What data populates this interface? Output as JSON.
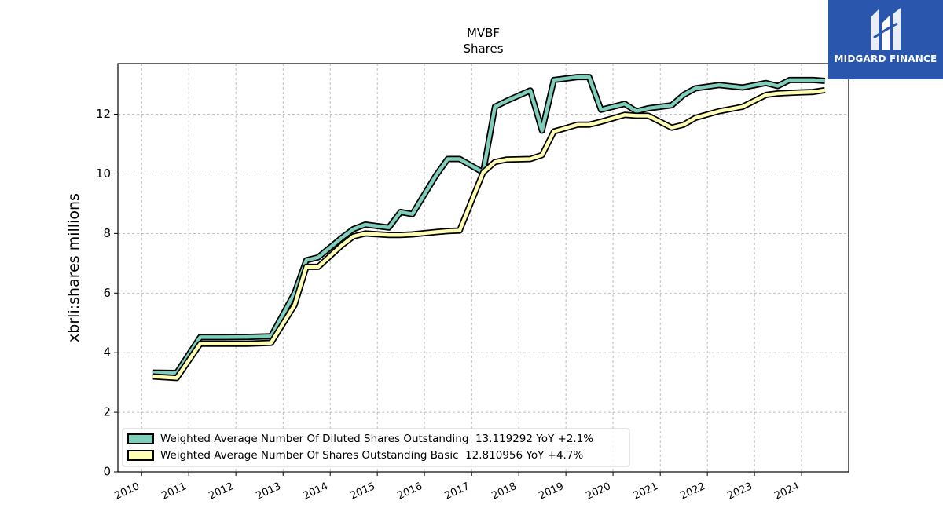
{
  "chart_data": {
    "type": "line",
    "title": "MVBF",
    "subtitle": "Shares",
    "ylabel": "xbrli:shares millions",
    "xlabel": "",
    "ylim": [
      0,
      13.7
    ],
    "xlim": [
      "2009-07-01",
      "2024-12-31"
    ],
    "yticks": [
      0,
      2,
      4,
      6,
      8,
      10,
      12
    ],
    "xticks": [
      "2010",
      "2011",
      "2012",
      "2013",
      "2014",
      "2015",
      "2016",
      "2017",
      "2018",
      "2019",
      "2020",
      "2021",
      "2022",
      "2023",
      "2024"
    ],
    "grid": true,
    "legend_position": "lower-left",
    "series": [
      {
        "name": "Weighted Average Number Of Diluted Shares Outstanding  13.119292 YoY +2.1%",
        "color": "#7fcdbb",
        "points": [
          [
            "2010-03-31",
            3.33
          ],
          [
            "2010-09-30",
            3.32
          ],
          [
            "2011-03-31",
            4.52
          ],
          [
            "2011-09-30",
            4.52
          ],
          [
            "2012-03-31",
            4.53
          ],
          [
            "2012-09-30",
            4.55
          ],
          [
            "2013-03-31",
            6.0
          ],
          [
            "2013-06-30",
            7.1
          ],
          [
            "2013-09-30",
            7.2
          ],
          [
            "2014-03-31",
            7.85
          ],
          [
            "2014-06-30",
            8.15
          ],
          [
            "2014-09-30",
            8.3
          ],
          [
            "2015-03-31",
            8.2
          ],
          [
            "2015-06-30",
            8.72
          ],
          [
            "2015-09-30",
            8.65
          ],
          [
            "2016-03-31",
            9.95
          ],
          [
            "2016-06-30",
            10.5
          ],
          [
            "2016-09-30",
            10.5
          ],
          [
            "2017-03-31",
            10.05
          ],
          [
            "2017-06-30",
            12.25
          ],
          [
            "2017-09-30",
            12.45
          ],
          [
            "2018-03-31",
            12.8
          ],
          [
            "2018-06-30",
            11.45
          ],
          [
            "2018-09-30",
            13.15
          ],
          [
            "2019-03-31",
            13.25
          ],
          [
            "2019-06-30",
            13.25
          ],
          [
            "2019-09-30",
            12.15
          ],
          [
            "2020-03-31",
            12.35
          ],
          [
            "2020-06-30",
            12.1
          ],
          [
            "2020-09-30",
            12.2
          ],
          [
            "2021-03-31",
            12.3
          ],
          [
            "2021-06-30",
            12.65
          ],
          [
            "2021-09-30",
            12.87
          ],
          [
            "2022-03-31",
            12.98
          ],
          [
            "2022-09-30",
            12.9
          ],
          [
            "2023-03-31",
            13.05
          ],
          [
            "2023-06-30",
            12.95
          ],
          [
            "2023-09-30",
            13.15
          ],
          [
            "2024-03-31",
            13.15
          ],
          [
            "2024-06-30",
            13.12
          ]
        ]
      },
      {
        "name": "Weighted Average Number Of Shares Outstanding Basic  12.810956 YoY +4.7%",
        "color": "#ffffb3",
        "points": [
          [
            "2010-03-31",
            3.2
          ],
          [
            "2010-09-30",
            3.15
          ],
          [
            "2011-03-31",
            4.3
          ],
          [
            "2011-09-30",
            4.3
          ],
          [
            "2012-03-31",
            4.3
          ],
          [
            "2012-09-30",
            4.33
          ],
          [
            "2013-03-31",
            5.6
          ],
          [
            "2013-06-30",
            6.88
          ],
          [
            "2013-09-30",
            6.88
          ],
          [
            "2014-03-31",
            7.6
          ],
          [
            "2014-06-30",
            7.9
          ],
          [
            "2014-09-30",
            8.0
          ],
          [
            "2015-03-31",
            7.95
          ],
          [
            "2015-06-30",
            7.95
          ],
          [
            "2015-09-30",
            7.97
          ],
          [
            "2016-03-31",
            8.05
          ],
          [
            "2016-06-30",
            8.08
          ],
          [
            "2016-09-30",
            8.1
          ],
          [
            "2017-03-31",
            10.05
          ],
          [
            "2017-06-30",
            10.4
          ],
          [
            "2017-09-30",
            10.48
          ],
          [
            "2018-03-31",
            10.5
          ],
          [
            "2018-06-30",
            10.63
          ],
          [
            "2018-09-30",
            11.42
          ],
          [
            "2019-03-31",
            11.65
          ],
          [
            "2019-06-30",
            11.65
          ],
          [
            "2019-09-30",
            11.75
          ],
          [
            "2020-03-31",
            11.98
          ],
          [
            "2020-06-30",
            11.95
          ],
          [
            "2020-09-30",
            11.95
          ],
          [
            "2021-03-31",
            11.55
          ],
          [
            "2021-06-30",
            11.65
          ],
          [
            "2021-09-30",
            11.88
          ],
          [
            "2022-03-31",
            12.1
          ],
          [
            "2022-09-30",
            12.25
          ],
          [
            "2023-03-31",
            12.65
          ],
          [
            "2023-06-30",
            12.7
          ],
          [
            "2023-09-30",
            12.72
          ],
          [
            "2024-03-31",
            12.75
          ],
          [
            "2024-06-30",
            12.81
          ]
        ]
      }
    ]
  },
  "logo": {
    "text": "MIDGARD FINANCE",
    "background": "#2a57ad"
  }
}
